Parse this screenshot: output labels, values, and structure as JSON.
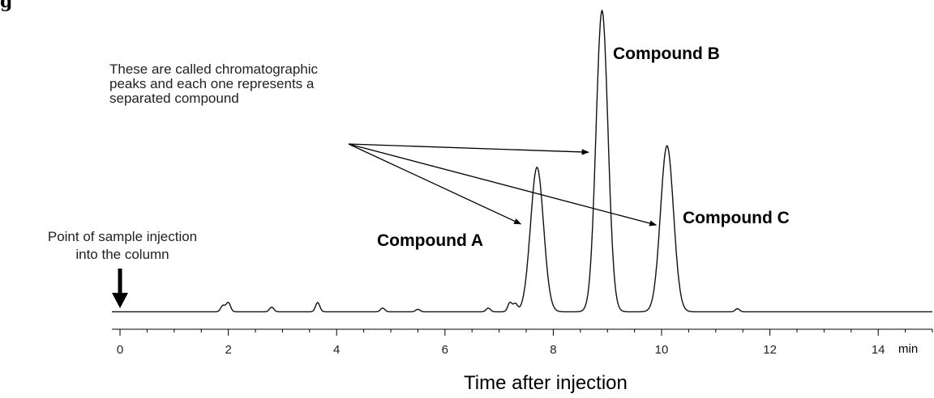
{
  "title_fragment": "g",
  "chart_data": {
    "type": "line",
    "title": "",
    "xlabel": "Time after injection",
    "x_unit": "min",
    "ylabel": "",
    "xlim": [
      -0.15,
      15
    ],
    "ylim": [
      0,
      1
    ],
    "x_ticks": [
      0,
      2,
      4,
      6,
      8,
      10,
      12,
      14
    ],
    "minor_tick_step": 0.5,
    "grid": false,
    "baseline": 0.02,
    "peaks": [
      {
        "label": "Compound A",
        "time": 7.7,
        "height": 0.47,
        "width": 0.12
      },
      {
        "label": "Compound B",
        "time": 8.9,
        "height": 0.98,
        "width": 0.11
      },
      {
        "label": "Compound C",
        "time": 10.1,
        "height": 0.54,
        "width": 0.12
      }
    ],
    "minor_peaks": [
      {
        "time": 1.9,
        "height": 0.02
      },
      {
        "time": 2.0,
        "height": 0.03
      },
      {
        "time": 2.8,
        "height": 0.015
      },
      {
        "time": 3.65,
        "height": 0.03
      },
      {
        "time": 4.85,
        "height": 0.012
      },
      {
        "time": 5.5,
        "height": 0.008
      },
      {
        "time": 6.8,
        "height": 0.012
      },
      {
        "time": 7.2,
        "height": 0.03
      },
      {
        "time": 7.3,
        "height": 0.025
      },
      {
        "time": 11.4,
        "height": 0.01
      }
    ],
    "annotation": [
      "These are called chromatographic",
      "peaks and each one represents a",
      "separated compound"
    ],
    "injection_label": [
      "Point of sample injection",
      "into the column"
    ],
    "injection_time": 0
  }
}
